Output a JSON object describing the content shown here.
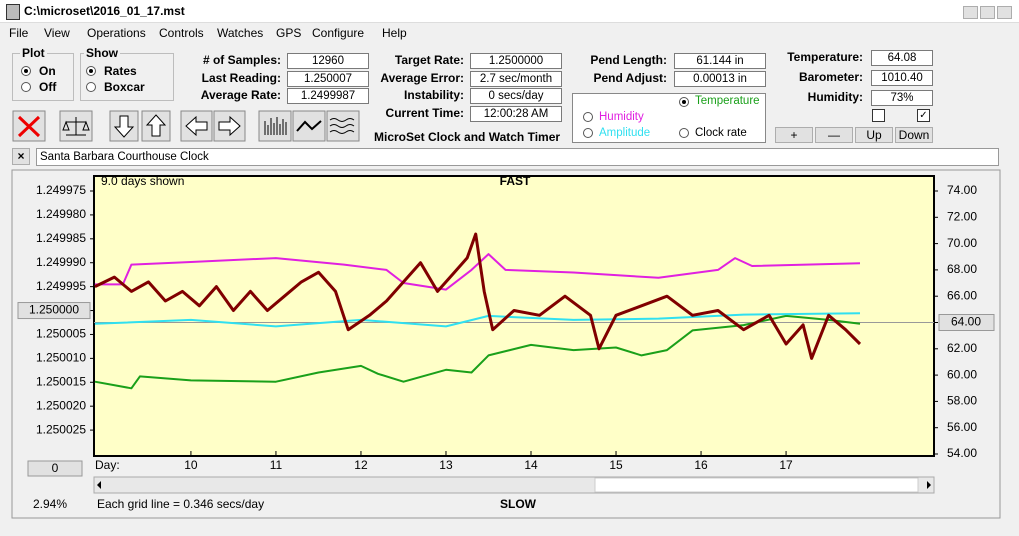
{
  "window": {
    "title": "C:\\microset\\2016_01_17.mst"
  },
  "menu": [
    "File",
    "View",
    "Operations",
    "Controls",
    "Watches",
    "GPS",
    "Configure",
    "Help"
  ],
  "plot_group": {
    "title": "Plot",
    "options": [
      "On",
      "Off"
    ]
  },
  "show_group": {
    "title": "Show",
    "options": [
      "Rates",
      "Boxcar"
    ]
  },
  "fields": {
    "col1": [
      {
        "label": "# of Samples:",
        "value": "12960"
      },
      {
        "label": "Last Reading:",
        "value": "1.250007"
      },
      {
        "label": "Average Rate:",
        "value": "1.2499987"
      }
    ],
    "col2": [
      {
        "label": "Target Rate:",
        "value": "1.2500000"
      },
      {
        "label": "Average Error:",
        "value": "2.7 sec/month"
      },
      {
        "label": "Instability:",
        "value": "0 secs/day"
      },
      {
        "label": "Current Time:",
        "value": "12:00:28 AM"
      }
    ],
    "col3": [
      {
        "label": "Pend Length:",
        "value": "61.144 in"
      },
      {
        "label": "Pend Adjust:",
        "value": "0.00013 in"
      }
    ],
    "col4": [
      {
        "label": "Temperature:",
        "value": "64.08"
      },
      {
        "label": "Barometer:",
        "value": "1010.40"
      },
      {
        "label": "Humidity:",
        "value": "73%"
      }
    ]
  },
  "app_name": "MicroSet Clock and Watch Timer",
  "adjust_buttons": [
    "+",
    "—",
    "Up",
    "Down"
  ],
  "clock_name": "Santa Barbara Courthouse Clock",
  "chart_data": {
    "type": "line",
    "title": "FAST",
    "bottom_label": "SLOW",
    "span_label": "9.0 days shown",
    "grid_note": "Each grid line = 0.346 secs/day",
    "scroll_percent": "2.94%",
    "offset_button": "0",
    "x_label": "Day:",
    "xlim": [
      8.86,
      18.74
    ],
    "xticks": [
      10,
      11,
      12,
      13,
      14,
      15,
      16,
      17
    ],
    "ylim": [
      1.25003,
      1.249975
    ],
    "yticks": [
      {
        "value": 1.249975,
        "label": "1.249975"
      },
      {
        "value": 1.24998,
        "label": "1.249980"
      },
      {
        "value": 1.249985,
        "label": "1.249985"
      },
      {
        "value": 1.24999,
        "label": "1.249990"
      },
      {
        "value": 1.249995,
        "label": "1.249995"
      },
      {
        "value": 1.25,
        "label": "1.250000"
      },
      {
        "value": 1.250005,
        "label": "1.250005"
      },
      {
        "value": 1.25001,
        "label": "1.250010"
      },
      {
        "value": 1.250015,
        "label": "1.250015"
      },
      {
        "value": 1.25002,
        "label": "1.250020"
      },
      {
        "value": 1.250025,
        "label": "1.250025"
      }
    ],
    "y2lim": [
      54,
      74
    ],
    "y2ticks": [
      {
        "value": 74,
        "label": "74.00"
      },
      {
        "value": 72,
        "label": "72.00"
      },
      {
        "value": 70,
        "label": "70.00"
      },
      {
        "value": 68,
        "label": "68.00"
      },
      {
        "value": 66,
        "label": "66.00"
      },
      {
        "value": 64,
        "label": "64.00"
      },
      {
        "value": 62,
        "label": "62.00"
      },
      {
        "value": 60,
        "label": "60.00"
      },
      {
        "value": 58,
        "label": "58.00"
      },
      {
        "value": 56,
        "label": "56.00"
      },
      {
        "value": 54,
        "label": "54.00"
      }
    ],
    "center_y2": 64,
    "series": [
      {
        "name": "Temperature",
        "color": "#1aa01a",
        "axis": "y2",
        "x": [
          8.87,
          9.3,
          9.4,
          10,
          11,
          11.5,
          12,
          12.2,
          12.5,
          13,
          13.3,
          13.5,
          14,
          14.5,
          15,
          15.3,
          15.6,
          15.9,
          16.5,
          17,
          17.5,
          17.87
        ],
        "values": [
          59.5,
          59.0,
          59.9,
          59.6,
          59.5,
          60.2,
          60.7,
          60.1,
          59.5,
          60.4,
          60.2,
          61.5,
          62.3,
          61.9,
          62.1,
          61.5,
          61.9,
          63.4,
          63.8,
          64.5,
          64.2,
          63.9
        ]
      },
      {
        "name": "Humidity",
        "color": "#e020e0",
        "axis": "y2",
        "x": [
          8.87,
          9.2,
          9.3,
          10,
          11,
          11.8,
          12.3,
          12.5,
          13,
          13.3,
          13.5,
          13.7,
          14.5,
          15.5,
          16.2,
          16.4,
          16.6,
          17.87
        ],
        "values": [
          66.9,
          66.9,
          68.4,
          68.6,
          68.9,
          68.4,
          68.0,
          67.0,
          66.5,
          68.0,
          69.2,
          68.0,
          67.8,
          67.4,
          68.0,
          68.9,
          68.3,
          68.5
        ]
      },
      {
        "name": "Amplitude",
        "color": "#30e0f0",
        "axis": "y2",
        "x": [
          8.87,
          10,
          11,
          12,
          13,
          13.5,
          14.5,
          15.5,
          16.5,
          17.87
        ],
        "values": [
          63.9,
          64.2,
          63.7,
          64.2,
          63.7,
          64.5,
          64.2,
          64.3,
          64.6,
          64.7
        ]
      },
      {
        "name": "Clock rate",
        "color": "#800000",
        "axis": "y",
        "x": [
          8.87,
          9.1,
          9.3,
          9.5,
          9.7,
          9.9,
          10.1,
          10.3,
          10.5,
          10.7,
          10.9,
          11.1,
          11.3,
          11.5,
          11.7,
          11.85,
          12.1,
          12.3,
          12.5,
          12.7,
          12.9,
          13.1,
          13.25,
          13.35,
          13.45,
          13.55,
          13.8,
          14.1,
          14.4,
          14.7,
          14.8,
          15.0,
          15.3,
          15.6,
          15.9,
          16.2,
          16.5,
          16.8,
          17.0,
          17.2,
          17.3,
          17.5,
          17.7,
          17.87
        ],
        "values": [
          1.249995,
          1.249993,
          1.249996,
          1.249994,
          1.249998,
          1.249996,
          1.249999,
          1.249995,
          1.25,
          1.249996,
          1.25,
          1.249997,
          1.249994,
          1.249992,
          1.249996,
          1.250004,
          1.250001,
          1.249998,
          1.249994,
          1.24999,
          1.249996,
          1.249992,
          1.249989,
          1.249984,
          1.249996,
          1.250004,
          1.25,
          1.250001,
          1.249997,
          1.250001,
          1.250008,
          1.250001,
          1.249999,
          1.249997,
          1.250001,
          1.25,
          1.250004,
          1.250001,
          1.250007,
          1.250003,
          1.25001,
          1.250001,
          1.250004,
          1.250007
        ]
      }
    ]
  }
}
